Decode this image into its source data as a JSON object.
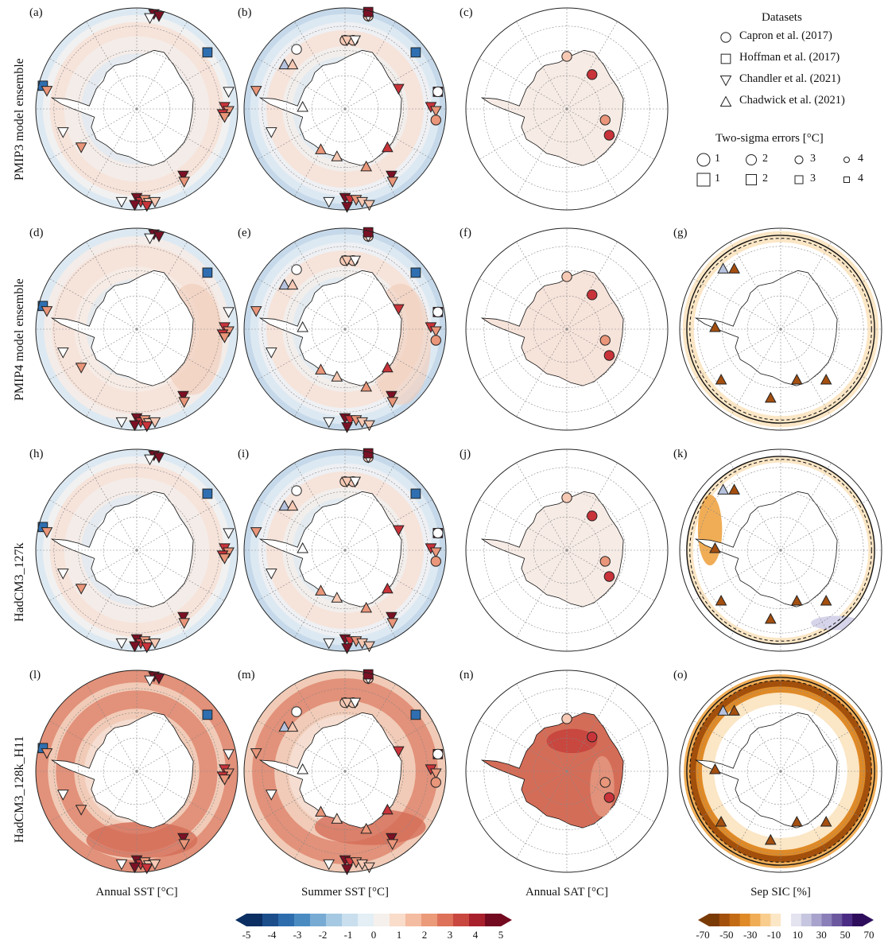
{
  "panel_labels": [
    "(a)",
    "(b)",
    "(c)",
    "(d)",
    "(e)",
    "(f)",
    "(g)",
    "(h)",
    "(i)",
    "(j)",
    "(k)",
    "(l)",
    "(m)",
    "(n)",
    "(o)"
  ],
  "row_labels": [
    "PMIP3 model ensemble",
    "PMIP4 model ensemble",
    "HadCM3_127k",
    "HadCM3_128k_H11"
  ],
  "col_labels": [
    "Annual SST [°C]",
    "Summer SST [°C]",
    "Annual SAT [°C]",
    "Sep SIC [%]"
  ],
  "legend": {
    "title": "Datasets",
    "items": [
      {
        "marker": "circle",
        "label": "Capron et al. (2017)"
      },
      {
        "marker": "square",
        "label": "Hoffman et al. (2017)"
      },
      {
        "marker": "triangle-down",
        "label": "Chandler et al. (2021)"
      },
      {
        "marker": "triangle-up",
        "label": "Chadwick et al. (2021)"
      }
    ],
    "errors_title": "Two-sigma errors [°C]",
    "error_values": [
      "1",
      "2",
      "3",
      "4"
    ]
  },
  "colorbar_temp": {
    "ticks": [
      "-5",
      "-4",
      "-3",
      "-2",
      "-1",
      "0",
      "1",
      "2",
      "3",
      "4",
      "5"
    ],
    "colors": [
      "#0b2f63",
      "#1c4e8c",
      "#2e6dad",
      "#4a8cc2",
      "#78abd3",
      "#a5c9e2",
      "#c9dfee",
      "#e3eef5",
      "#f5f0ec",
      "#f9dcc9",
      "#f4bca0",
      "#eb9a7a",
      "#dd7159",
      "#c8473f",
      "#a8202c",
      "#730a1f"
    ],
    "extend": "both"
  },
  "colorbar_sic": {
    "ticks": [
      "-70",
      "-50",
      "-30",
      "-10",
      "10",
      "30",
      "50",
      "70"
    ],
    "colors": [
      "#7a3a06",
      "#a2500c",
      "#c36a14",
      "#df8a27",
      "#f0ad56",
      "#f8cd8d",
      "#fbe6c5",
      "#ffffff",
      "#e4e3f0",
      "#c7c6e0",
      "#a8a3cd",
      "#8a7fb8",
      "#6b589f",
      "#4b2c84",
      "#2e0e5c"
    ],
    "extend": "both"
  },
  "field_colors": {
    "cool_light": "#dde9f2",
    "cool": "#c6d9ea",
    "warm_light": "#f6e3da",
    "warm": "#f1cbb7",
    "warm_strong": "#e2917a",
    "warm_deep": "#d46d58",
    "land": "#ffffff",
    "sic_loss": "#eea653",
    "sic_loss_deep": "#a5510c",
    "sic_gain": "#d6d4ea"
  },
  "marker_colors": {
    "very_warm": "#7b1024",
    "warm": "#c9333a",
    "mild_warm": "#e9967a",
    "light_warm": "#f6c9b4",
    "neutral": "#ffffff",
    "light_cool": "#b7c3de",
    "cool": "#2f6fb1",
    "brown": "#a44f10"
  }
}
